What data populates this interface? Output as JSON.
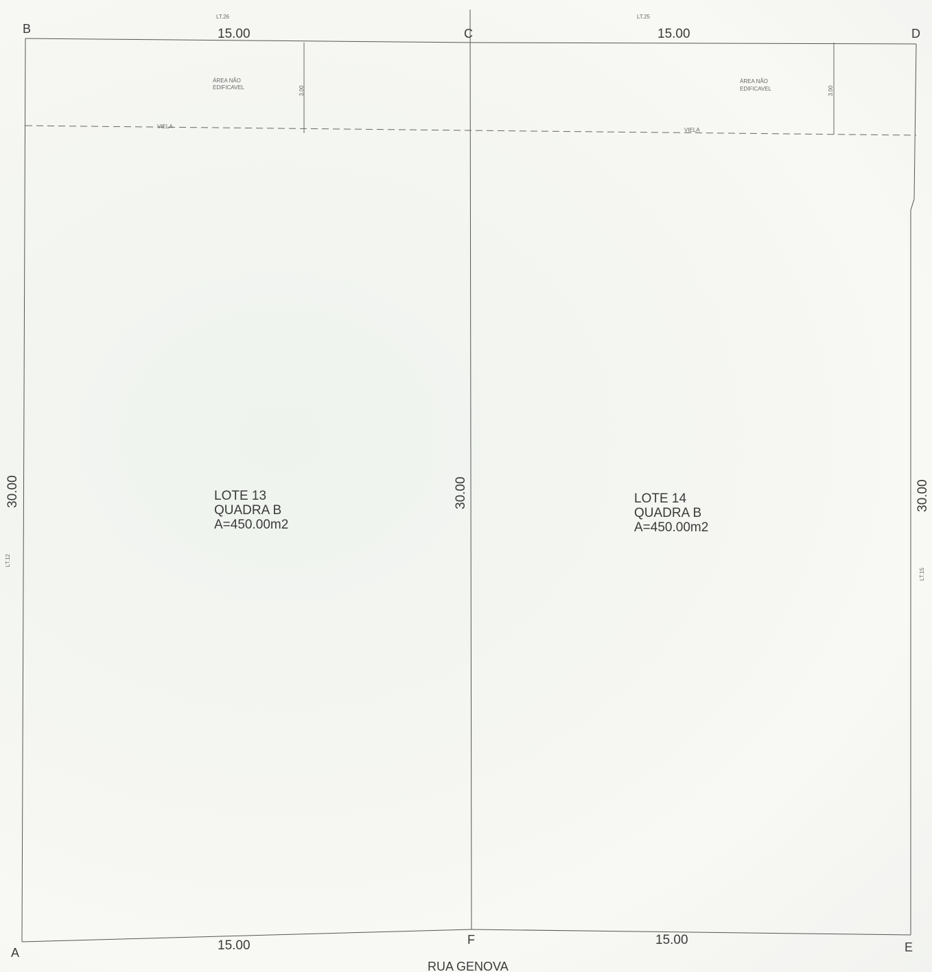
{
  "points": {
    "a": "A",
    "b": "B",
    "c": "C",
    "d": "D",
    "e": "E",
    "f": "F"
  },
  "neighbors": {
    "top_left": "LT.26",
    "top_right": "LT.25",
    "left": "LT.12",
    "right": "LT.15"
  },
  "dimensions": {
    "top_left": "15.00",
    "top_right": "15.00",
    "bottom_left": "15.00",
    "bottom_right": "15.00",
    "left": "30.00",
    "center": "30.00",
    "right": "30.00",
    "setback_left": "3.00",
    "setback_right": "3.00"
  },
  "non_buildable": {
    "left_line1": "ÁREA NÃO",
    "left_line2": "EDIFICAVEL",
    "right_line1": "ÁREA NÃO",
    "right_line2": "EDIFICAVEL"
  },
  "alley": {
    "left": "VIELA",
    "right": "VIELA"
  },
  "lots": [
    {
      "lot": "LOTE 13",
      "block": "QUADRA B",
      "area": "A=450.00m2"
    },
    {
      "lot": "LOTE 14",
      "block": "QUADRA B",
      "area": "A=450.00m2"
    }
  ],
  "street": "RUA GENOVA",
  "colors": {
    "line": "#555555",
    "text": "#3a3a3a",
    "dash": "#666666"
  }
}
